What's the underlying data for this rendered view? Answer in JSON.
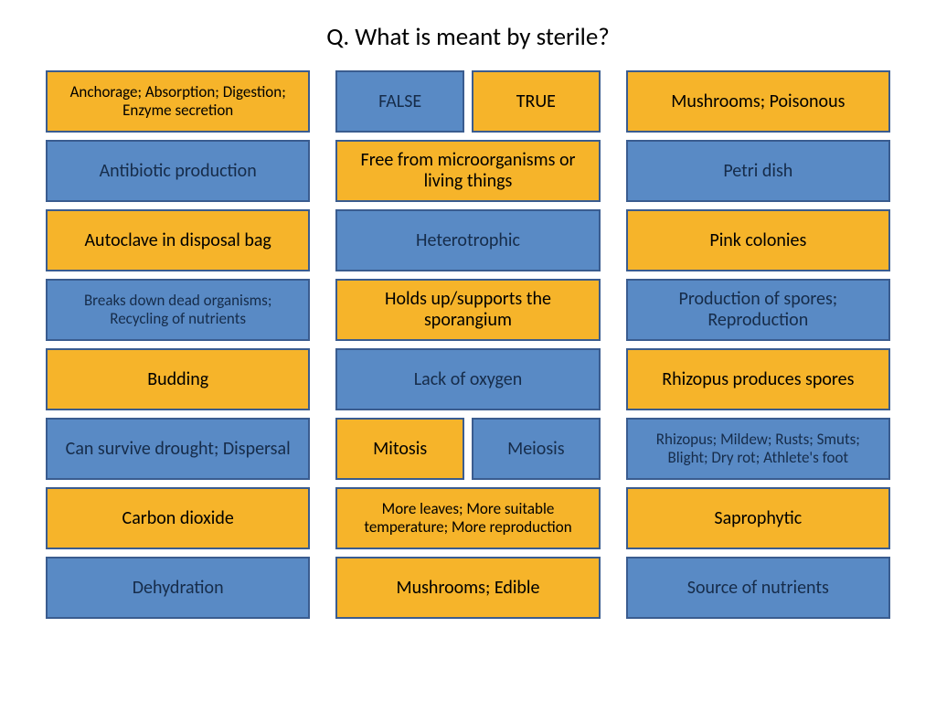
{
  "title": "Q. What is meant by sterile?",
  "palette": {
    "yellow_fill": "#f6b42a",
    "yellow_border": "#3a5c8f",
    "blue_fill": "#598ac5",
    "blue_border": "#3a5c8f",
    "text_dark": "#000000",
    "text_on_blue": "#162c4a"
  },
  "font": {
    "normal": 20,
    "small": 17
  },
  "columns": [
    [
      {
        "type": "single",
        "color": "yellow",
        "size": "small",
        "text": "Anchorage; Absorption; Digestion; Enzyme secretion"
      },
      {
        "type": "single",
        "color": "blue",
        "size": "normal",
        "text": "Antibiotic production"
      },
      {
        "type": "single",
        "color": "yellow",
        "size": "normal",
        "text": "Autoclave in disposal bag"
      },
      {
        "type": "single",
        "color": "blue",
        "size": "small",
        "text": "Breaks down dead organisms; Recycling of nutrients"
      },
      {
        "type": "single",
        "color": "yellow",
        "size": "normal",
        "text": "Budding"
      },
      {
        "type": "single",
        "color": "blue",
        "size": "normal",
        "text": "Can survive drought; Dispersal"
      },
      {
        "type": "single",
        "color": "yellow",
        "size": "normal",
        "text": "Carbon dioxide"
      },
      {
        "type": "single",
        "color": "blue",
        "size": "normal",
        "text": "Dehydration"
      }
    ],
    [
      {
        "type": "split",
        "cells": [
          {
            "color": "blue",
            "size": "normal",
            "text": "FALSE"
          },
          {
            "color": "yellow",
            "size": "normal",
            "text": "TRUE"
          }
        ]
      },
      {
        "type": "single",
        "color": "yellow",
        "size": "normal",
        "text": "Free from microorganisms or living things"
      },
      {
        "type": "single",
        "color": "blue",
        "size": "normal",
        "text": "Heterotrophic"
      },
      {
        "type": "single",
        "color": "yellow",
        "size": "normal",
        "text": "Holds up/supports the sporangium"
      },
      {
        "type": "single",
        "color": "blue",
        "size": "normal",
        "text": "Lack of oxygen"
      },
      {
        "type": "split",
        "cells": [
          {
            "color": "yellow",
            "size": "normal",
            "text": "Mitosis"
          },
          {
            "color": "blue",
            "size": "normal",
            "text": "Meiosis"
          }
        ]
      },
      {
        "type": "single",
        "color": "yellow",
        "size": "small",
        "text": "More leaves; More suitable temperature; More reproduction"
      },
      {
        "type": "single",
        "color": "yellow",
        "size": "normal",
        "text": "Mushrooms; Edible"
      }
    ],
    [
      {
        "type": "single",
        "color": "yellow",
        "size": "normal",
        "text": "Mushrooms; Poisonous"
      },
      {
        "type": "single",
        "color": "blue",
        "size": "normal",
        "text": "Petri dish"
      },
      {
        "type": "single",
        "color": "yellow",
        "size": "normal",
        "text": "Pink colonies"
      },
      {
        "type": "single",
        "color": "blue",
        "size": "normal",
        "text": "Production of spores; Reproduction"
      },
      {
        "type": "single",
        "color": "yellow",
        "size": "normal",
        "text": "Rhizopus produces spores"
      },
      {
        "type": "single",
        "color": "blue",
        "size": "small",
        "text": "Rhizopus; Mildew; Rusts; Smuts; Blight; Dry rot; Athlete's foot"
      },
      {
        "type": "single",
        "color": "yellow",
        "size": "normal",
        "text": "Saprophytic"
      },
      {
        "type": "single",
        "color": "blue",
        "size": "normal",
        "text": "Source of nutrients"
      }
    ]
  ]
}
